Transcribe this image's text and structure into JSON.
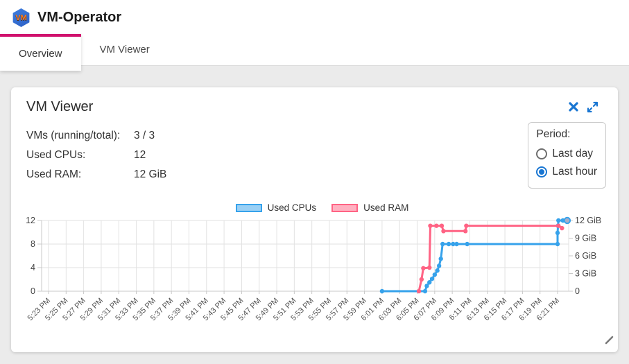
{
  "colors": {
    "accent": "#d0116d",
    "icon_blue": "#1976d2",
    "cpu_line": "#36a2eb",
    "cpu_fill": "#9ad0f5",
    "ram_line": "#ff6384",
    "ram_fill": "#ffb1c1",
    "grid": "#e2e2e2",
    "axis": "#c8c8c8"
  },
  "header": {
    "logo_text": "VM",
    "app_title": "VM-Operator",
    "tabs": [
      {
        "label": "Overview",
        "active": true
      },
      {
        "label": "VM Viewer",
        "active": false
      }
    ]
  },
  "card": {
    "title": "VM Viewer",
    "stats": [
      {
        "label": "VMs (running/total):",
        "value": "3 / 3"
      },
      {
        "label": "Used CPUs:",
        "value": "12"
      },
      {
        "label": "Used RAM:",
        "value": "12 GiB"
      }
    ],
    "period": {
      "title": "Period:",
      "options": [
        {
          "label": "Last day",
          "selected": false
        },
        {
          "label": "Last hour",
          "selected": true
        }
      ]
    }
  },
  "chart_data": {
    "type": "line",
    "title": "",
    "legend_position": "top",
    "grid": true,
    "x_labels": [
      "5:23 PM",
      "5:25 PM",
      "5:27 PM",
      "5:29 PM",
      "5:31 PM",
      "5:33 PM",
      "5:35 PM",
      "5:37 PM",
      "5:39 PM",
      "5:41 PM",
      "5:43 PM",
      "5:45 PM",
      "5:47 PM",
      "5:49 PM",
      "5:51 PM",
      "5:53 PM",
      "5:55 PM",
      "5:57 PM",
      "5:59 PM",
      "6:01 PM",
      "6:03 PM",
      "6:05 PM",
      "6:07 PM",
      "6:09 PM",
      "6:11 PM",
      "6:13 PM",
      "6:15 PM",
      "6:17 PM",
      "6:19 PM",
      "6:21 PM"
    ],
    "x_minutes_per_tick": 2,
    "y_left": {
      "min": 0,
      "max": 12,
      "ticks": [
        {
          "v": 0,
          "label": "0"
        },
        {
          "v": 4,
          "label": "4"
        },
        {
          "v": 8,
          "label": "8"
        },
        {
          "v": 12,
          "label": "12"
        }
      ]
    },
    "y_right": {
      "min": 0,
      "max": 12,
      "ticks": [
        {
          "v": 0,
          "label": "0"
        },
        {
          "v": 3,
          "label": "3 GiB"
        },
        {
          "v": 6,
          "label": "6 GiB"
        },
        {
          "v": 9,
          "label": "9 GiB"
        },
        {
          "v": 12,
          "label": "12 GiB"
        }
      ]
    },
    "series": [
      {
        "name": "Used CPUs",
        "axis": "left",
        "color": "#36a2eb",
        "fill": "#9ad0f5",
        "end_marker_fill": "#a9aec6",
        "points": [
          [
            38,
            0
          ],
          [
            42.9,
            0
          ],
          [
            43.1,
            0.9
          ],
          [
            43.4,
            1.5
          ],
          [
            43.7,
            2.1
          ],
          [
            44.0,
            2.8
          ],
          [
            44.3,
            3.5
          ],
          [
            44.5,
            4.3
          ],
          [
            44.7,
            5.5
          ],
          [
            44.9,
            8
          ],
          [
            45.6,
            8
          ],
          [
            46.1,
            8
          ],
          [
            46.5,
            8
          ],
          [
            47.7,
            8
          ],
          [
            58,
            8
          ],
          [
            58,
            9.9
          ],
          [
            58.05,
            11.1
          ],
          [
            58.1,
            12
          ],
          [
            58.6,
            12
          ],
          [
            59.1,
            12
          ]
        ]
      },
      {
        "name": "Used RAM",
        "axis": "right",
        "color": "#ff6384",
        "fill": "#ffb1c1",
        "points": [
          [
            42.2,
            0
          ],
          [
            42.5,
            2
          ],
          [
            42.7,
            3.9
          ],
          [
            43.4,
            4
          ],
          [
            43.5,
            11.1
          ],
          [
            44.2,
            11.1
          ],
          [
            44.8,
            11.1
          ],
          [
            45.0,
            10.2
          ],
          [
            47.5,
            10.2
          ],
          [
            47.6,
            11.1
          ],
          [
            58.1,
            11.1
          ],
          [
            58.5,
            10.7
          ]
        ]
      }
    ]
  }
}
